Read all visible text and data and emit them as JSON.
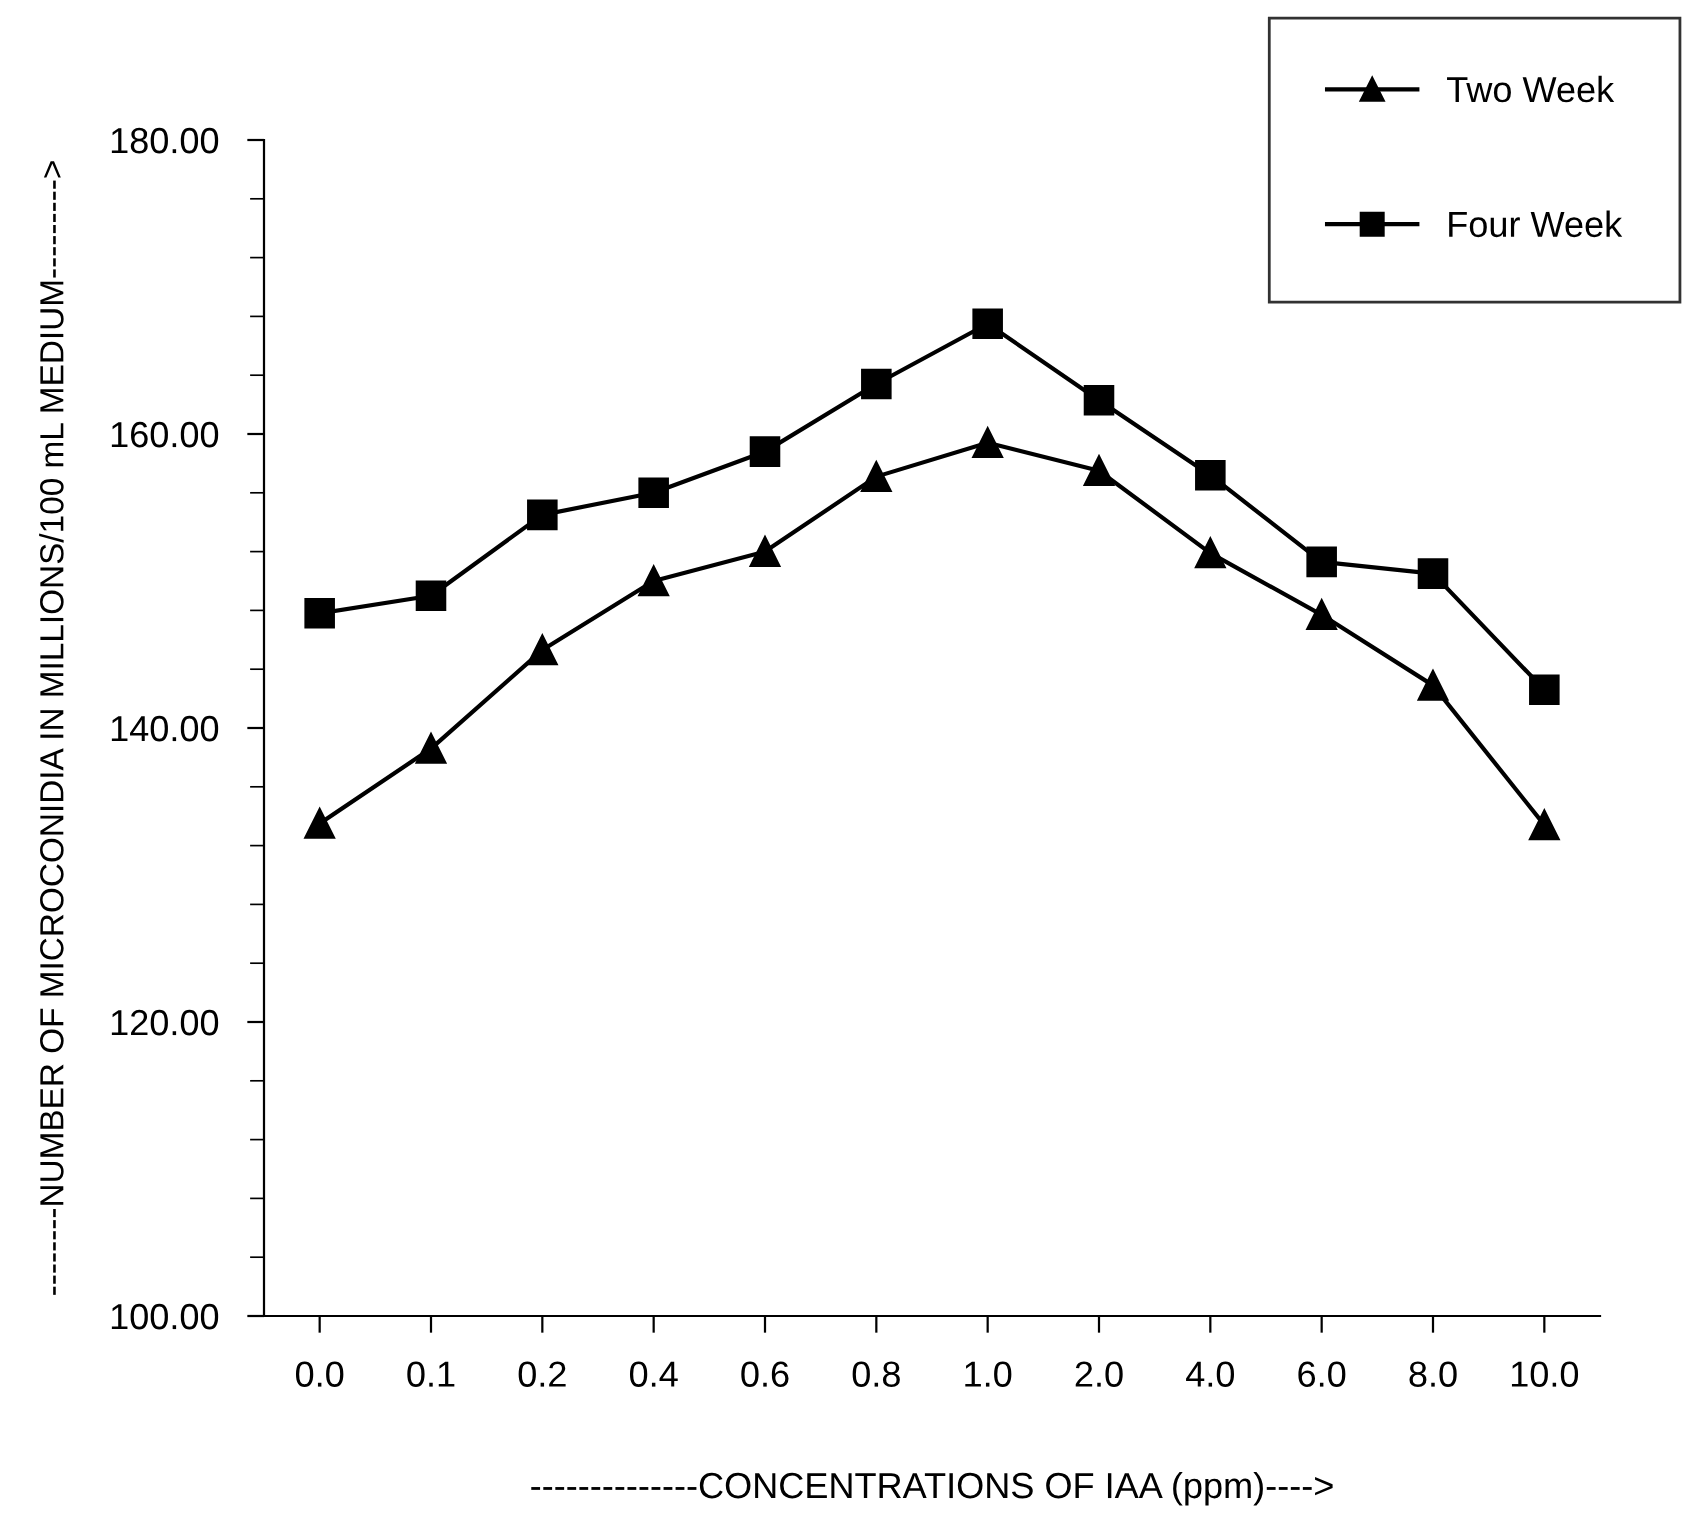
{
  "chart_data": {
    "type": "line",
    "xlabel": "--------------CONCENTRATIONS OF IAA (ppm)---->",
    "ylabel": "--------NUMBER OF MICROCONIDIA IN MILLIONS/100 mL MEDIUM--------->",
    "categories": [
      "0.0",
      "0.1",
      "0.2",
      "0.4",
      "0.6",
      "0.8",
      "1.0",
      "2.0",
      "4.0",
      "6.0",
      "8.0",
      "10.0"
    ],
    "series": [
      {
        "name": "Two Week",
        "color": "#000000",
        "marker": "triangle",
        "values": [
          133.5,
          138.6,
          145.3,
          150.0,
          152.0,
          157.1,
          159.4,
          157.5,
          151.9,
          147.7,
          142.9,
          133.4
        ]
      },
      {
        "name": "Four Week",
        "color": "#000000",
        "marker": "square",
        "values": [
          147.8,
          149.0,
          154.5,
          156.0,
          158.8,
          163.4,
          167.5,
          162.3,
          157.2,
          151.3,
          150.5,
          142.6
        ]
      }
    ],
    "ylim": [
      100,
      180
    ],
    "yticks": [
      {
        "value": 100,
        "label": "100.00"
      },
      {
        "value": 120,
        "label": "120.00"
      },
      {
        "value": 140,
        "label": "140.00"
      },
      {
        "value": 160,
        "label": "160.00"
      },
      {
        "value": 180,
        "label": "180.00"
      }
    ],
    "grid": false,
    "legend": "top right",
    "line_style": "solid"
  }
}
